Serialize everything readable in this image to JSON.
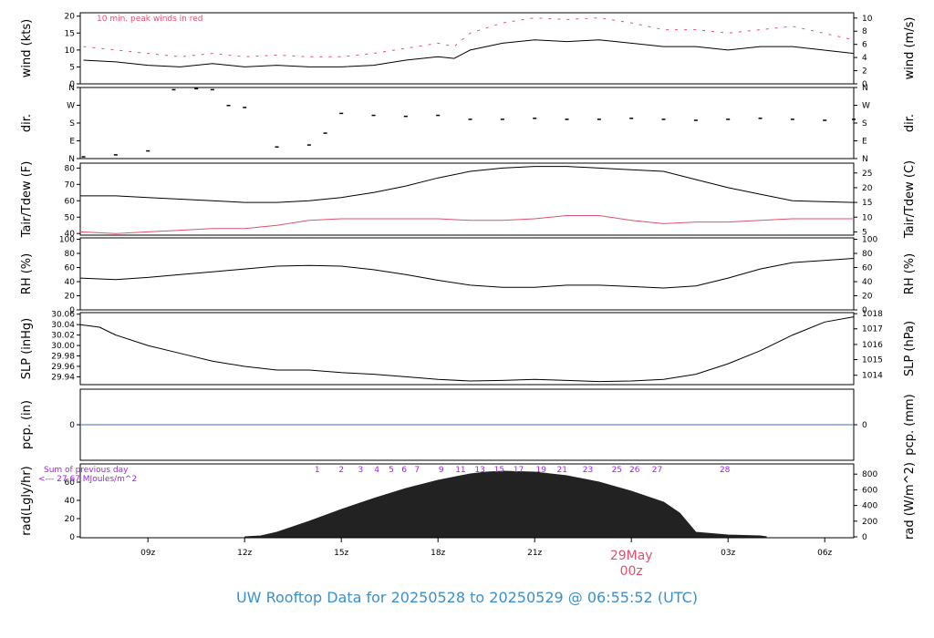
{
  "footer": {
    "title": "UW Rooftop Data for 20250528  to  20250529 @ 06:55:52  (UTC)"
  },
  "colors": {
    "series_main": "#000000",
    "series_alt": "#e0506e",
    "precip": "#3b6fc4",
    "sunrise": "#a020f0",
    "footer": "#3a8fd0",
    "date_label": "#e0506e"
  },
  "chart_data": [
    {
      "id": "wind",
      "type": "line",
      "ylabel_left": "wind (kts)",
      "ylabel_right": "wind (m/s)",
      "ylim": [
        0,
        21
      ],
      "yticks_left": [
        0,
        5,
        10,
        15,
        20
      ],
      "yticks_right": [
        {
          "label": "0",
          "value": 0
        },
        {
          "label": "2",
          "value": 3.89
        },
        {
          "label": "4",
          "value": 7.78
        },
        {
          "label": "6",
          "value": 11.66
        },
        {
          "label": "8",
          "value": 15.55
        },
        {
          "label": "10",
          "value": 19.44
        }
      ],
      "annotation": "10 min. peak winds in red",
      "series": [
        {
          "name": "wind",
          "color": "#000000",
          "x": [
            7,
            8,
            9,
            10,
            11,
            12,
            13,
            14,
            15,
            16,
            17,
            18,
            18.5,
            19,
            20,
            21,
            22,
            23,
            24,
            25,
            26,
            27,
            28,
            29,
            30.9
          ],
          "y": [
            7,
            6.5,
            5.5,
            5,
            6,
            5,
            5.5,
            5,
            5,
            5.5,
            7,
            8,
            7.5,
            10,
            12,
            13,
            12.5,
            13,
            12,
            11,
            11,
            10,
            11,
            11,
            9
          ]
        },
        {
          "name": "peak",
          "color": "#e0506e",
          "style": "dash",
          "x": [
            7,
            8,
            9,
            10,
            11,
            12,
            13,
            14,
            15,
            16,
            17,
            18,
            18.5,
            19,
            20,
            21,
            22,
            23,
            24,
            25,
            26,
            27,
            28,
            29,
            30.9
          ],
          "y": [
            11,
            10,
            9,
            8,
            9,
            8,
            8.5,
            8,
            8,
            9,
            10.5,
            12,
            11,
            15,
            18,
            19.5,
            19,
            19.5,
            18,
            16,
            16,
            15,
            16,
            17,
            13
          ]
        }
      ]
    },
    {
      "id": "dir",
      "type": "scatter",
      "ylabel_left": "dir.",
      "ylabel_right": "dir.",
      "ylim": [
        0,
        360
      ],
      "yticks_left": [
        {
          "label": "N",
          "value": 0
        },
        {
          "label": "E",
          "value": 90
        },
        {
          "label": "S",
          "value": 180
        },
        {
          "label": "W",
          "value": 270
        },
        {
          "label": "N",
          "value": 360
        }
      ],
      "yticks_right": [
        {
          "label": "N",
          "value": 0
        },
        {
          "label": "E",
          "value": 90
        },
        {
          "label": "S",
          "value": 180
        },
        {
          "label": "W",
          "value": 270
        },
        {
          "label": "N",
          "value": 360
        }
      ],
      "series": [
        {
          "name": "direction",
          "color": "#000000",
          "x": [
            7,
            8,
            9,
            9.8,
            10.5,
            11,
            11.5,
            12,
            13,
            14,
            14.5,
            15,
            16,
            17,
            18,
            19,
            20,
            21,
            22,
            23,
            24,
            25,
            26,
            27,
            28,
            29,
            30,
            30.9
          ],
          "y": [
            10,
            20,
            40,
            350,
            355,
            350,
            270,
            260,
            60,
            70,
            130,
            230,
            220,
            215,
            220,
            200,
            200,
            205,
            200,
            200,
            205,
            200,
            195,
            200,
            205,
            200,
            195,
            200
          ]
        }
      ]
    },
    {
      "id": "temp",
      "type": "line",
      "ylabel_left": "Tair/Tdew (F)",
      "ylabel_right": "Tair/Tdew (C)",
      "ylim": [
        39,
        83
      ],
      "yticks_left": [
        40,
        50,
        60,
        70,
        80
      ],
      "yticks_right": [
        {
          "label": "5",
          "value": 41
        },
        {
          "label": "10",
          "value": 50
        },
        {
          "label": "15",
          "value": 59
        },
        {
          "label": "20",
          "value": 68
        },
        {
          "label": "25",
          "value": 77
        }
      ],
      "series": [
        {
          "name": "Tair",
          "color": "#000000",
          "x": [
            6.9,
            8,
            9,
            10,
            11,
            12,
            13,
            14,
            15,
            16,
            17,
            18,
            19,
            20,
            21,
            22,
            23,
            24,
            25,
            26,
            27,
            28,
            29,
            30.9
          ],
          "y": [
            63,
            63,
            62,
            61,
            60,
            59,
            59,
            60,
            62,
            65,
            69,
            74,
            78,
            80,
            81,
            81,
            80,
            79,
            78,
            73,
            68,
            64,
            60,
            59
          ]
        },
        {
          "name": "Tdew",
          "color": "#e0506e",
          "x": [
            6.9,
            8,
            9,
            10,
            11,
            12,
            13,
            14,
            15,
            16,
            17,
            18,
            19,
            20,
            21,
            22,
            23,
            24,
            25,
            26,
            27,
            28,
            29,
            30.9
          ],
          "y": [
            41,
            40,
            41,
            42,
            43,
            43,
            45,
            48,
            49,
            49,
            49,
            49,
            48,
            48,
            49,
            51,
            51,
            48,
            46,
            47,
            47,
            48,
            49,
            49
          ]
        }
      ]
    },
    {
      "id": "rh",
      "type": "line",
      "ylabel_left": "RH (%)",
      "ylabel_right": "RH (%)",
      "ylim": [
        0,
        102
      ],
      "yticks_left": [
        0,
        20,
        40,
        60,
        80,
        100
      ],
      "yticks_right": [
        {
          "label": "0",
          "value": 0
        },
        {
          "label": "20",
          "value": 20
        },
        {
          "label": "40",
          "value": 40
        },
        {
          "label": "60",
          "value": 60
        },
        {
          "label": "80",
          "value": 80
        },
        {
          "label": "100",
          "value": 100
        }
      ],
      "series": [
        {
          "name": "RH",
          "color": "#000000",
          "x": [
            6.9,
            8,
            9,
            10,
            11,
            12,
            13,
            14,
            15,
            16,
            17,
            18,
            19,
            20,
            21,
            22,
            23,
            24,
            25,
            26,
            27,
            28,
            29,
            30.9
          ],
          "y": [
            45,
            43,
            46,
            50,
            54,
            58,
            62,
            63,
            62,
            57,
            50,
            42,
            35,
            32,
            32,
            35,
            35,
            33,
            31,
            34,
            45,
            58,
            67,
            73
          ]
        }
      ]
    },
    {
      "id": "slp",
      "type": "line",
      "ylabel_left": "SLP (inHg)",
      "ylabel_right": "SLP (hPa)",
      "ylim": [
        29.925,
        30.063
      ],
      "yticks_left": [
        {
          "label": "29.94",
          "value": 29.94
        },
        {
          "label": "29.96",
          "value": 29.96
        },
        {
          "label": "29.98",
          "value": 29.98
        },
        {
          "label": "30.00",
          "value": 30.0
        },
        {
          "label": "30.02",
          "value": 30.02
        },
        {
          "label": "30.04",
          "value": 30.04
        },
        {
          "label": "30.06",
          "value": 30.06
        }
      ],
      "yticks_right": [
        {
          "label": "1014",
          "value": 29.943
        },
        {
          "label": "1015",
          "value": 29.973
        },
        {
          "label": "1016",
          "value": 30.002
        },
        {
          "label": "1017",
          "value": 30.032
        },
        {
          "label": "1018",
          "value": 30.061
        }
      ],
      "series": [
        {
          "name": "SLP",
          "color": "#000000",
          "x": [
            6.9,
            7.5,
            8,
            9,
            10,
            11,
            12,
            13,
            14,
            15,
            16,
            17,
            18,
            19,
            20,
            21,
            22,
            23,
            24,
            25,
            26,
            27,
            28,
            29,
            30,
            30.9
          ],
          "y": [
            30.04,
            30.035,
            30.02,
            30.0,
            29.985,
            29.97,
            29.96,
            29.953,
            29.953,
            29.948,
            29.945,
            29.94,
            29.935,
            29.932,
            29.933,
            29.935,
            29.933,
            29.931,
            29.932,
            29.935,
            29.945,
            29.965,
            29.99,
            30.02,
            30.045,
            30.055
          ]
        }
      ]
    },
    {
      "id": "pcp",
      "type": "line",
      "ylabel_left": "pcp. (in)",
      "ylabel_right": "pcp. (mm)",
      "ylim": [
        -1,
        1
      ],
      "yticks_left": [
        {
          "label": "0",
          "value": 0
        }
      ],
      "yticks_right": [
        {
          "label": "0",
          "value": 0
        }
      ],
      "series": [
        {
          "name": "precip",
          "color": "#3b6fc4",
          "x": [
            6.9,
            30.9
          ],
          "y": [
            0,
            0
          ]
        }
      ]
    },
    {
      "id": "rad",
      "type": "area",
      "ylabel_left": "rad(Lgly/hr)",
      "ylabel_right": "rad (W/m^2)",
      "ylim": [
        -1,
        80
      ],
      "yticks_left": [
        {
          "label": "0",
          "value": 0
        },
        {
          "label": "20",
          "value": 20
        },
        {
          "label": "40",
          "value": 40
        },
        {
          "label": "60",
          "value": 60
        }
      ],
      "yticks_right": [
        {
          "label": "0",
          "value": 0
        },
        {
          "label": "200",
          "value": 17.2
        },
        {
          "label": "400",
          "value": 34.4
        },
        {
          "label": "600",
          "value": 51.6
        },
        {
          "label": "800",
          "value": 68.8
        }
      ],
      "annotation_left": [
        "Sum of previous day",
        "<--- 27.67 MJoules/m^2"
      ],
      "ticks_numbered": [
        {
          "label": "1",
          "x": 14.25
        },
        {
          "label": "2",
          "x": 15
        },
        {
          "label": "3",
          "x": 15.6
        },
        {
          "label": "4",
          "x": 16.1
        },
        {
          "label": "5",
          "x": 16.55
        },
        {
          "label": "6",
          "x": 16.95
        },
        {
          "label": "7",
          "x": 17.35
        },
        {
          "label": "9",
          "x": 18.1
        },
        {
          "label": "11",
          "x": 18.7
        },
        {
          "label": "13",
          "x": 19.3
        },
        {
          "label": "15",
          "x": 19.9
        },
        {
          "label": "17",
          "x": 20.5
        },
        {
          "label": "19",
          "x": 21.2
        },
        {
          "label": "21",
          "x": 21.85
        },
        {
          "label": "23",
          "x": 22.65
        },
        {
          "label": "25",
          "x": 23.55
        },
        {
          "label": "26",
          "x": 24.1
        },
        {
          "label": "27",
          "x": 24.8
        },
        {
          "label": "28",
          "x": 26.9
        }
      ],
      "series": [
        {
          "name": "radiation",
          "color": "#222222",
          "x": [
            12,
            12.5,
            13,
            14,
            15,
            16,
            17,
            18,
            19,
            19.5,
            20,
            21,
            22,
            23,
            24,
            25,
            25.5,
            26,
            27,
            28,
            28.2
          ],
          "y": [
            0,
            1,
            5,
            17,
            30,
            42,
            53,
            62,
            69,
            71,
            72,
            71,
            67,
            60,
            50,
            38,
            26,
            5,
            2,
            1,
            0
          ]
        }
      ]
    }
  ],
  "x_axis": {
    "xlim": [
      6.9,
      30.9
    ],
    "ticks": [
      {
        "label": "09z",
        "x": 9
      },
      {
        "label": "12z",
        "x": 12
      },
      {
        "label": "15z",
        "x": 15
      },
      {
        "label": "18z",
        "x": 18
      },
      {
        "label": "21z",
        "x": 21
      },
      {
        "label": "03z",
        "x": 27
      },
      {
        "label": "06z",
        "x": 30
      }
    ],
    "date_marker": {
      "label": "29May",
      "sublabel": "00z",
      "x": 24
    }
  }
}
